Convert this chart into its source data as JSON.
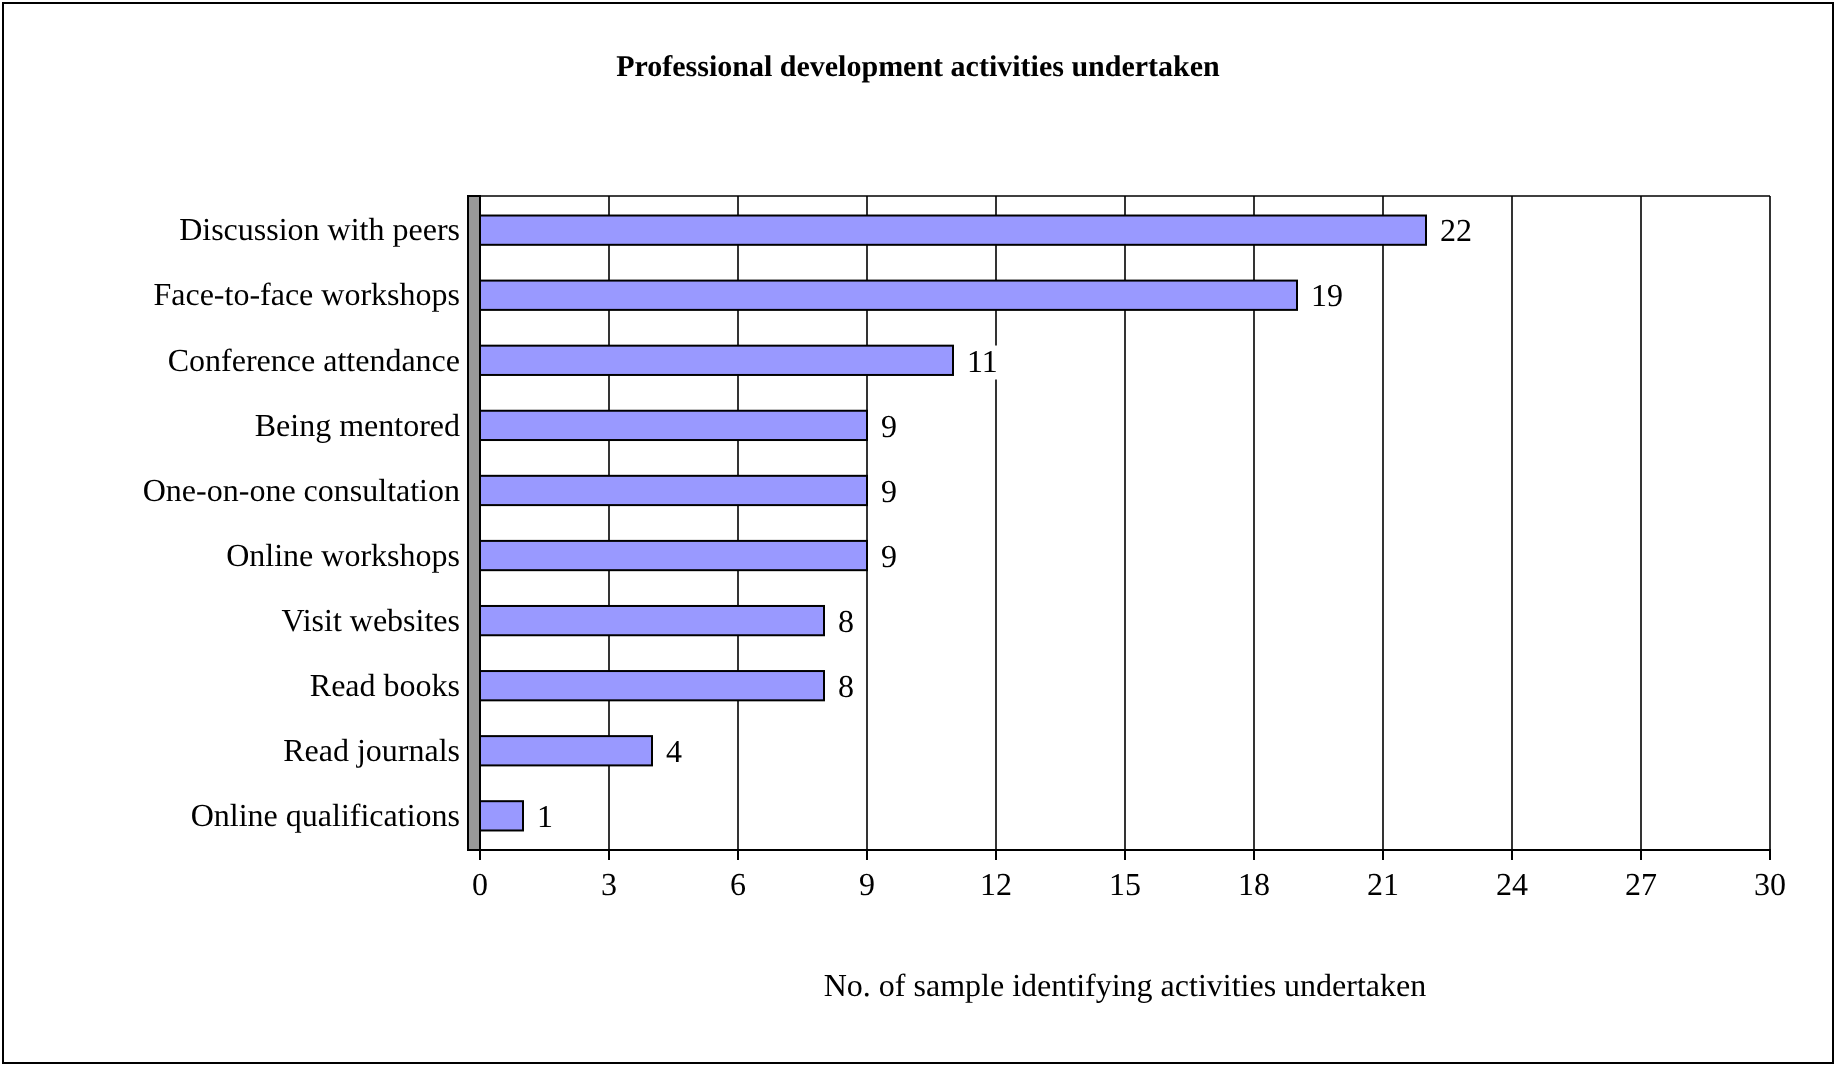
{
  "chart_data": {
    "type": "bar",
    "orientation": "horizontal",
    "title": "Professional development activities undertaken",
    "xlabel": "No. of sample identifying activities undertaken",
    "categories": [
      "Discussion with peers",
      "Face-to-face workshops",
      "Conference attendance",
      "Being mentored",
      "One-on-one consultation",
      "Online workshops",
      "Visit websites",
      "Read books",
      "Read journals",
      "Online qualifications"
    ],
    "values": [
      22,
      19,
      11,
      9,
      9,
      9,
      8,
      8,
      4,
      1
    ],
    "color": "#9999ff",
    "xlim": [
      0,
      30
    ],
    "xticks": [
      0,
      3,
      6,
      9,
      12,
      15,
      18,
      21,
      24,
      27,
      30
    ],
    "grid": "x",
    "data_labels": true
  }
}
